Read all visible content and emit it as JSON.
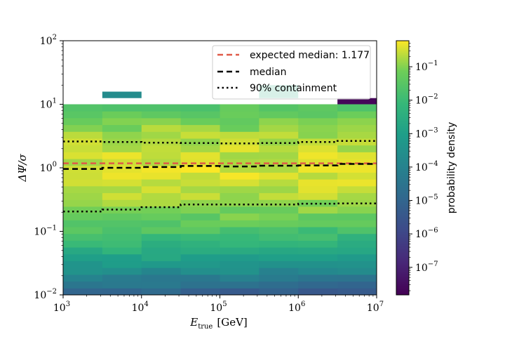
{
  "chart_data": {
    "type": "heatmap",
    "x_scale": "log",
    "y_scale": "log",
    "xlim": [
      1000,
      10000000
    ],
    "ylim": [
      0.01,
      100
    ],
    "xlabel_main": "E",
    "xlabel_sub": "true",
    "xlabel_unit": "[GeV]",
    "ylabel": "ΔΨ/σ",
    "x_ticks": [
      {
        "base": "10",
        "exp": "3",
        "value": 1000
      },
      {
        "base": "10",
        "exp": "4",
        "value": 10000
      },
      {
        "base": "10",
        "exp": "5",
        "value": 100000
      },
      {
        "base": "10",
        "exp": "6",
        "value": 1000000
      },
      {
        "base": "10",
        "exp": "7",
        "value": 10000000
      }
    ],
    "y_ticks": [
      {
        "base": "10",
        "exp": "−2",
        "value": 0.01
      },
      {
        "base": "10",
        "exp": "−1",
        "value": 0.1
      },
      {
        "base": "10",
        "exp": "0",
        "value": 1
      },
      {
        "base": "10",
        "exp": "1",
        "value": 10
      },
      {
        "base": "10",
        "exp": "2",
        "value": 100
      }
    ],
    "x_bin_edges": [
      1000,
      3162,
      10000,
      31623,
      100000,
      316228,
      1000000,
      3162278,
      10000000
    ],
    "y_bin_edges_log10": [
      -2,
      1
    ],
    "y_bins": 28,
    "extra_cells": [
      {
        "x0": 3162,
        "x1": 10000,
        "y0": 12.5,
        "y1": 15.8,
        "density": 0.0002
      },
      {
        "x0": 316228,
        "x1": 1000000,
        "y0": 12.5,
        "y1": 20.0,
        "density": 0.0025
      },
      {
        "x0": 3162278,
        "x1": 10000000,
        "y0": 10.0,
        "y1": 12.5,
        "density": 2e-08
      }
    ],
    "lines": [
      {
        "name": "expected median: 1.177",
        "style": "dashed",
        "color": "#e05a48",
        "y": [
          1.177,
          1.177,
          1.177,
          1.177,
          1.177,
          1.177,
          1.177,
          1.177
        ]
      },
      {
        "name": "median",
        "style": "dashed",
        "color": "#000000",
        "y": [
          0.96,
          1.0,
          1.03,
          1.07,
          1.05,
          1.08,
          1.09,
          1.15
        ]
      },
      {
        "name": "90% containment",
        "style": "dotted",
        "color": "#000000",
        "y_upper": [
          2.6,
          2.55,
          2.48,
          2.45,
          2.42,
          2.45,
          2.55,
          2.65
        ],
        "y_lower": [
          0.205,
          0.22,
          0.24,
          0.265,
          0.265,
          0.265,
          0.272,
          0.275
        ]
      }
    ],
    "colorbar": {
      "label": "probability density",
      "scale": "log",
      "range": [
        1.5e-08,
        0.6
      ],
      "ticks": [
        {
          "base": "10",
          "exp": "−7",
          "value": 1e-07
        },
        {
          "base": "10",
          "exp": "−6",
          "value": 1e-06
        },
        {
          "base": "10",
          "exp": "−5",
          "value": 1e-05
        },
        {
          "base": "10",
          "exp": "−4",
          "value": 0.0001
        },
        {
          "base": "10",
          "exp": "−3",
          "value": 0.001
        },
        {
          "base": "10",
          "exp": "−2",
          "value": 0.01
        },
        {
          "base": "10",
          "exp": "−1",
          "value": 0.1
        }
      ]
    },
    "legend_position": "top-right"
  }
}
